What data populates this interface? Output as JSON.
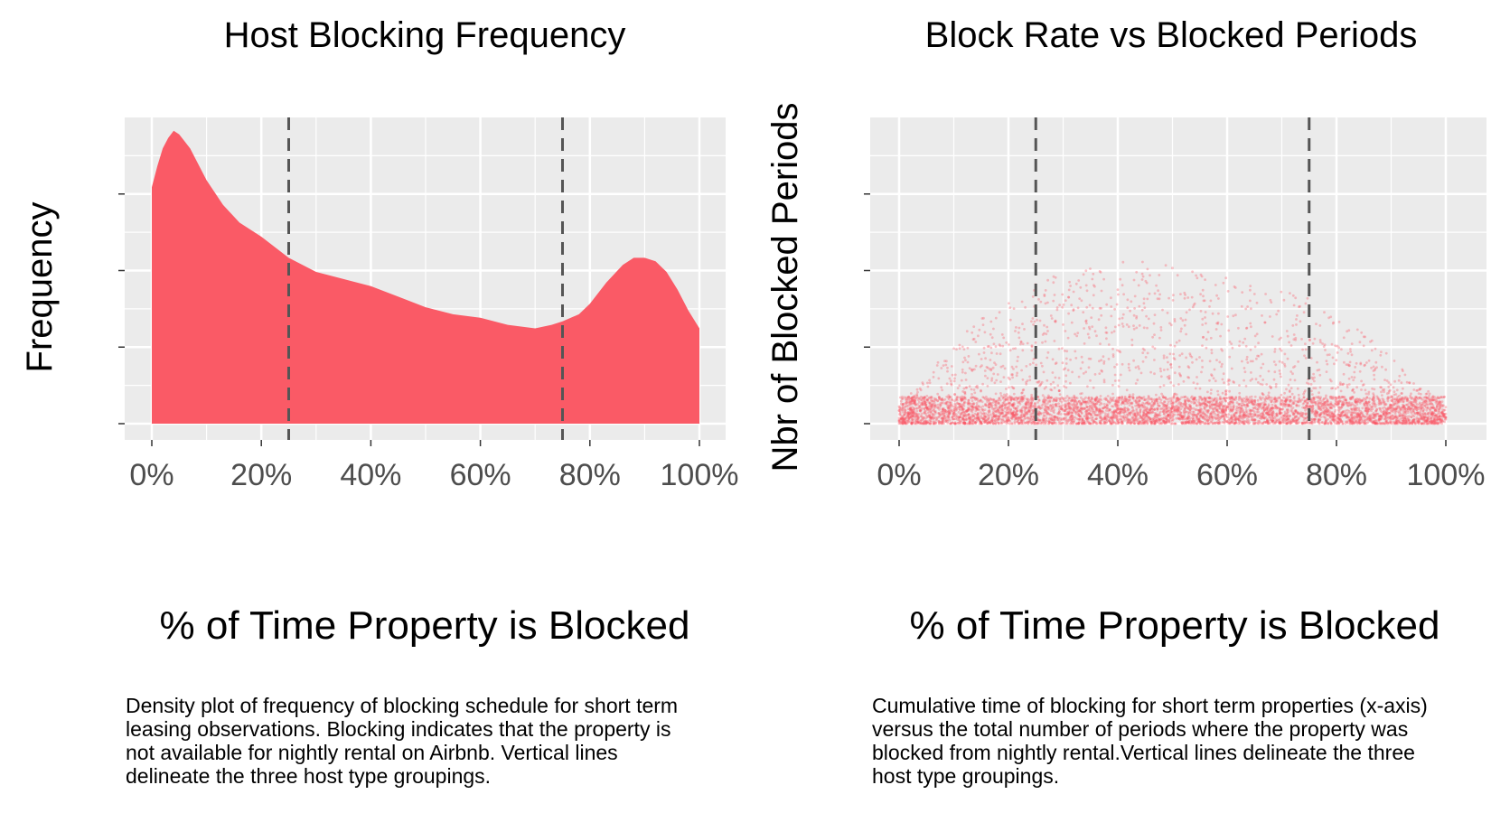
{
  "chart_data": [
    {
      "type": "area",
      "title": "Host Blocking Frequency",
      "xlabel": "% of Time Property is Blocked",
      "ylabel": "Frequency",
      "xlim": [
        0,
        1
      ],
      "x_ticks": [
        "0%",
        "20%",
        "40%",
        "60%",
        "80%",
        "100%"
      ],
      "y_ticks_labeled": false,
      "grid": true,
      "fill_color": "#FA5A66",
      "vlines": {
        "x": [
          0.25,
          0.75
        ],
        "style": "dashed",
        "color": "#555555"
      },
      "x": [
        0,
        0.01,
        0.02,
        0.03,
        0.04,
        0.05,
        0.07,
        0.1,
        0.13,
        0.16,
        0.2,
        0.25,
        0.3,
        0.35,
        0.4,
        0.45,
        0.5,
        0.55,
        0.6,
        0.65,
        0.7,
        0.73,
        0.75,
        0.78,
        0.8,
        0.83,
        0.86,
        0.88,
        0.9,
        0.92,
        0.94,
        0.96,
        0.98,
        1.0
      ],
      "y": [
        0.67,
        0.73,
        0.78,
        0.81,
        0.83,
        0.82,
        0.78,
        0.69,
        0.62,
        0.57,
        0.53,
        0.47,
        0.43,
        0.41,
        0.39,
        0.36,
        0.33,
        0.31,
        0.3,
        0.28,
        0.27,
        0.28,
        0.29,
        0.31,
        0.34,
        0.4,
        0.45,
        0.47,
        0.47,
        0.46,
        0.43,
        0.38,
        0.32,
        0.27
      ],
      "caption": "Density plot of frequency of blocking schedule for short term\nleasing observations. Blocking indicates that the property is\nnot available for nightly rental on Airbnb. Vertical lines\ndelineate the three host type groupings."
    },
    {
      "type": "scatter",
      "title": "Block Rate vs Blocked Periods",
      "xlabel": "% of Time Property is Blocked",
      "ylabel": "Nbr of Blocked Periods",
      "xlim": [
        0,
        1
      ],
      "x_ticks": [
        "0%",
        "20%",
        "40%",
        "60%",
        "80%",
        "100%"
      ],
      "y_ticks_labeled": false,
      "grid": true,
      "point_color": "#FA5A66",
      "point_opacity": 0.35,
      "vlines": {
        "x": [
          0.25,
          0.75
        ],
        "style": "dashed",
        "color": "#555555"
      },
      "distribution": {
        "n_points": 6000,
        "description_x_range": [
          0,
          1
        ],
        "bulk_band_y": [
          0.0,
          0.1
        ],
        "upper_envelope_y": [
          0.05,
          0.35,
          0.5,
          0.55,
          0.5,
          0.45,
          0.3,
          0.05
        ]
      },
      "caption": "Cumulative time of blocking for short term properties (x-axis)\nversus the total number of periods where the property was\nblocked from nightly rental.Vertical lines delineate the three\nhost type groupings."
    }
  ]
}
